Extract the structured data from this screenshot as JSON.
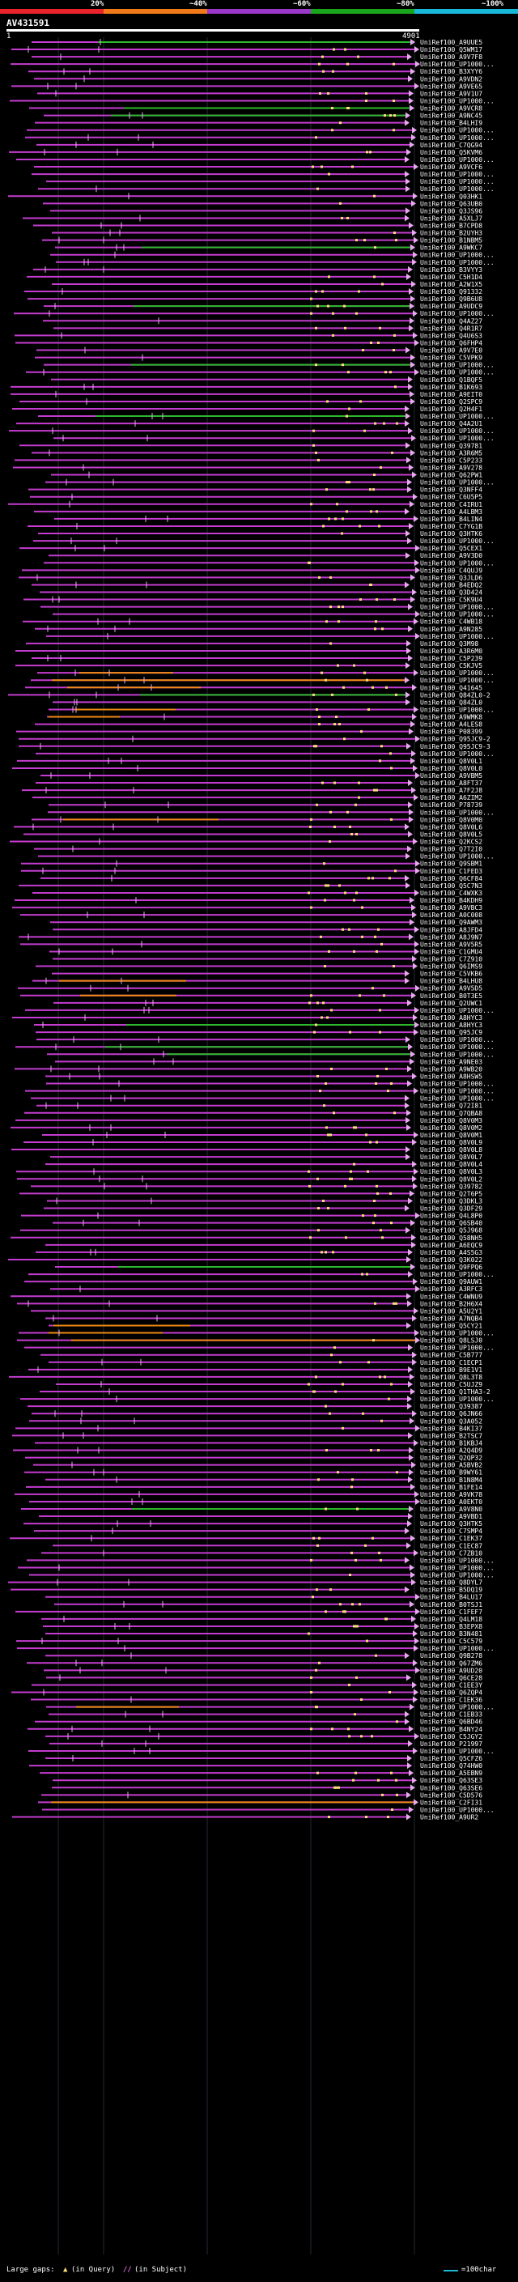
{
  "scale": {
    "labels": [
      "20%",
      "~40%",
      "~60%",
      "~80%",
      "~100%"
    ],
    "colors": [
      "#e8242a",
      "#f07a1a",
      "#9a38c9",
      "#19a51c",
      "#1ab8d8"
    ]
  },
  "query": {
    "name": "AV431591",
    "start": "1",
    "end": "4901"
  },
  "hits": [
    "UniRef100_A9UUE5",
    "UniRef100_Q5WM17",
    "UniRef100_A9V7F8",
    "UniRef100_UP1000...",
    "UniRef100_B3XYY6",
    "UniRef100_A9VDN2",
    "UniRef100_A9VE65",
    "UniRef100_A9V1U7",
    "UniRef100_UP1000...",
    "UniRef100_A9VCR8",
    "UniRef100_A9NC45",
    "UniRef100_B4LHI9",
    "UniRef100_UP1000...",
    "UniRef100_UP1000...",
    "UniRef100_C7QG94",
    "UniRef100_Q5KVM6",
    "UniRef100_UP1000...",
    "UniRef100_A9VCF6",
    "UniRef100_UP1000...",
    "UniRef100_UP1000...",
    "UniRef100_UP1000...",
    "UniRef100_Q03HK1",
    "UniRef100_Q63UB0",
    "UniRef100_Q3JS96",
    "UniRef100_A5XLJ7",
    "UniRef100_B7CPD8",
    "UniRef100_B2UYH3",
    "UniRef100_B1NBM5",
    "UniRef100_A9WKC7",
    "UniRef100_UP1000...",
    "UniRef100_UP1000...",
    "UniRef100_B3VYY3",
    "UniRef100_C5H1D4",
    "UniRef100_A2W1X5",
    "UniRef100_Q91332",
    "UniRef100_Q9B6U8",
    "UniRef100_A9UDC9",
    "UniRef100_UP1000...",
    "UniRef100_Q4AZ27",
    "UniRef100_Q4R1R7",
    "UniRef100_Q4U6S3",
    "UniRef100_Q6FHP4",
    "UniRef100_A9V7E0",
    "UniRef100_C5VPK9",
    "UniRef100_UP1000...",
    "UniRef100_UP1000...",
    "UniRef100_Q1BQF5",
    "UniRef100_B1K693",
    "UniRef100_A9EIT0",
    "UniRef100_Q2SPC9",
    "UniRef100_Q2H4F1",
    "UniRef100_UP1000...",
    "UniRef100_Q4A2U1",
    "UniRef100_UP1000...",
    "UniRef100_UP1000...",
    "UniRef100_Q39781",
    "UniRef100_A3R6M5",
    "UniRef100_C5P233",
    "UniRef100_A9V278",
    "UniRef100_Q62PW1",
    "UniRef100_UP1000...",
    "UniRef100_Q3NFF4",
    "UniRef100_C6U5P5",
    "UniRef100_C4IRU1",
    "UniRef100_A4LBM3",
    "UniRef100_B4LIN4",
    "UniRef100_C7YG1B",
    "UniRef100_Q3HTK6",
    "UniRef100_UP1000...",
    "UniRef100_Q5CEX1",
    "UniRef100_A9V3D0",
    "UniRef100_UP1000...",
    "UniRef100_C4QUJ9",
    "UniRef100_Q3JLD6",
    "UniRef100_B4EDQ2",
    "UniRef100_Q3D424",
    "UniRef100_C5K9U4",
    "UniRef100_UP1000...",
    "UniRef100_UP1000...",
    "UniRef100_C4WB18",
    "UniRef100_A9N285",
    "UniRef100_UP1000...",
    "UniRef100_Q3M98",
    "UniRef100_A3R6M0",
    "UniRef100_C5P239",
    "UniRef100_C5KJV5",
    "UniRef100_UP1000...",
    "UniRef100_UP1000...",
    "UniRef100_Q41645",
    "UniRef100_Q84ZL0-2",
    "UniRef100_Q84ZL0",
    "UniRef100_UP1000...",
    "UniRef100_A9WMK8",
    "UniRef100_A4LES8",
    "UniRef100_P08399",
    "UniRef100_Q95JC9-2",
    "UniRef100_Q95JC9-3",
    "UniRef100_UP1000...",
    "UniRef100_Q8V0L1",
    "UniRef100_Q8V0L0",
    "UniRef100_A9VBM5",
    "UniRef100_A8FT37",
    "UniRef100_A7F2J8",
    "UniRef100_A6ZIM2",
    "UniRef100_P78739",
    "UniRef100_UP1000...",
    "UniRef100_Q8V0M0",
    "UniRef100_Q8V0L6",
    "UniRef100_Q8V0L5",
    "UniRef100_Q2KCS2",
    "UniRef100_Q7T2I0",
    "UniRef100_UP1000...",
    "UniRef100_Q9SBM1",
    "UniRef100_C1FED3",
    "UniRef100_Q6CF84",
    "UniRef100_Q5C7N3",
    "UniRef100_C4WXK3",
    "UniRef100_B4KDH9",
    "UniRef100_A9VBC3",
    "UniRef100_A0C008",
    "UniRef100_Q9AWM3",
    "UniRef100_A8JFD4",
    "UniRef100_A8J9N7",
    "UniRef100_A9V5R5",
    "UniRef100_C1GMU4",
    "UniRef100_C7Z910",
    "UniRef100_Q6IMS9",
    "UniRef100_C5VKB6",
    "UniRef100_B4LHU8",
    "UniRef100_A9V5D5",
    "UniRef100_B0T3E5",
    "UniRef100_Q2UWC1",
    "UniRef100_UP1000...",
    "UniRef100_A8HYC3",
    "UniRef100_A8HYC3",
    "UniRef100_Q95JC9",
    "UniRef100_UP1000...",
    "UniRef100_UP1000...",
    "UniRef100_UP1000...",
    "UniRef100_A9NE03",
    "UniRef100_A9WB20",
    "UniRef100_A8HSW5",
    "UniRef100_UP1000...",
    "UniRef100_UP1000...",
    "UniRef100_UP1000...",
    "UniRef100_Q72I81",
    "UniRef100_Q7QBA8",
    "UniRef100_Q8V0M3",
    "UniRef100_Q8V0M2",
    "UniRef100_Q8V0M1",
    "UniRef100_Q8V0L9",
    "UniRef100_Q8V0L8",
    "UniRef100_Q8V0L7",
    "UniRef100_Q8V0L4",
    "UniRef100_Q8V0L3",
    "UniRef100_Q8V0L2",
    "UniRef100_Q39782",
    "UniRef100_Q2T6P5",
    "UniRef100_Q3DKL3",
    "UniRef100_Q3DF29",
    "UniRef100_Q4L8P0",
    "UniRef100_Q6SB40",
    "UniRef100_Q5J968",
    "UniRef100_Q58NH5",
    "UniRef100_A6EQC9",
    "UniRef100_A4S5G3",
    "UniRef100_Q3K022",
    "UniRef100_Q9FPQ6",
    "UniRef100_UP1000...",
    "UniRef100_Q9AUW1",
    "UniRef100_A3RFC3",
    "UniRef100_C4WNU9",
    "UniRef100_B2H6X4",
    "UniRef100_A5U2Y1",
    "UniRef100_A7NQB4",
    "UniRef100_Q5CY21",
    "UniRef100_UP1000...",
    "UniRef100_Q8LSJ0",
    "UniRef100_UP1000...",
    "UniRef100_C5B777",
    "UniRef100_C1ECP1",
    "UniRef100_B9E1V1",
    "UniRef100_Q8L3T8",
    "UniRef100_C5UJZ9",
    "UniRef100_Q1THA3-2",
    "UniRef100_UP1000...",
    "UniRef100_Q39387",
    "UniRef100_Q6JN66",
    "UniRef100_Q3A052",
    "UniRef100_B4KI37",
    "UniRef100_B2TSC7",
    "UniRef100_B1KBJ4",
    "UniRef100_A2Q4D9",
    "UniRef100_Q2QP32",
    "UniRef100_A5BVB2",
    "UniRef100_B9WY61",
    "UniRef100_B1N8M4",
    "UniRef100_B1FE14",
    "UniRef100_A9VK78",
    "UniRef100_A0EKT0",
    "UniRef100_A9V8N0",
    "UniRef100_A9VBD1",
    "UniRef100_Q3HTK5",
    "UniRef100_C7SMP4",
    "UniRef100_C1EK37",
    "UniRef100_C1EC87",
    "UniRef100_C7ZB10",
    "UniRef100_UP1000...",
    "UniRef100_UP1000...",
    "UniRef100_UP1000...",
    "UniRef100_Q8DYL7",
    "UniRef100_B5DQ19",
    "UniRef100_B4LU17",
    "UniRef100_B0TSJ1",
    "UniRef100_C1FEF7",
    "UniRef100_Q4LM18",
    "UniRef100_B3EPX8",
    "UniRef100_B3N481",
    "UniRef100_C5C579",
    "UniRef100_UP1000...",
    "UniRef100_Q9B278",
    "UniRef100_Q67ZM6",
    "UniRef100_A9UD20",
    "UniRef100_Q6CE28",
    "UniRef100_C1EE3Y",
    "UniRef100_Q6ZQP4",
    "UniRef100_C1EK36",
    "UniRef100_UP1000...",
    "UniRef100_C1EB33",
    "UniRef100_Q6BD46",
    "UniRef100_B4NY24",
    "UniRef100_C5JGY2",
    "UniRef100_P21997",
    "UniRef100_UP1000...",
    "UniRef100_Q5CFZ6",
    "UniRef100_Q74HW0",
    "UniRef100_A5EBN9",
    "UniRef100_Q63SE3",
    "UniRef100_Q63SE6",
    "UniRef100_C5D576",
    "UniRef100_C2FI31",
    "UniRef100_UP1000...",
    "UniRef100_A9UR2"
  ],
  "legend": {
    "gaps_label": "Large gaps:",
    "in_query": "(in Query)",
    "in_subject": "(in Subject)",
    "scale_note": "=100char"
  }
}
